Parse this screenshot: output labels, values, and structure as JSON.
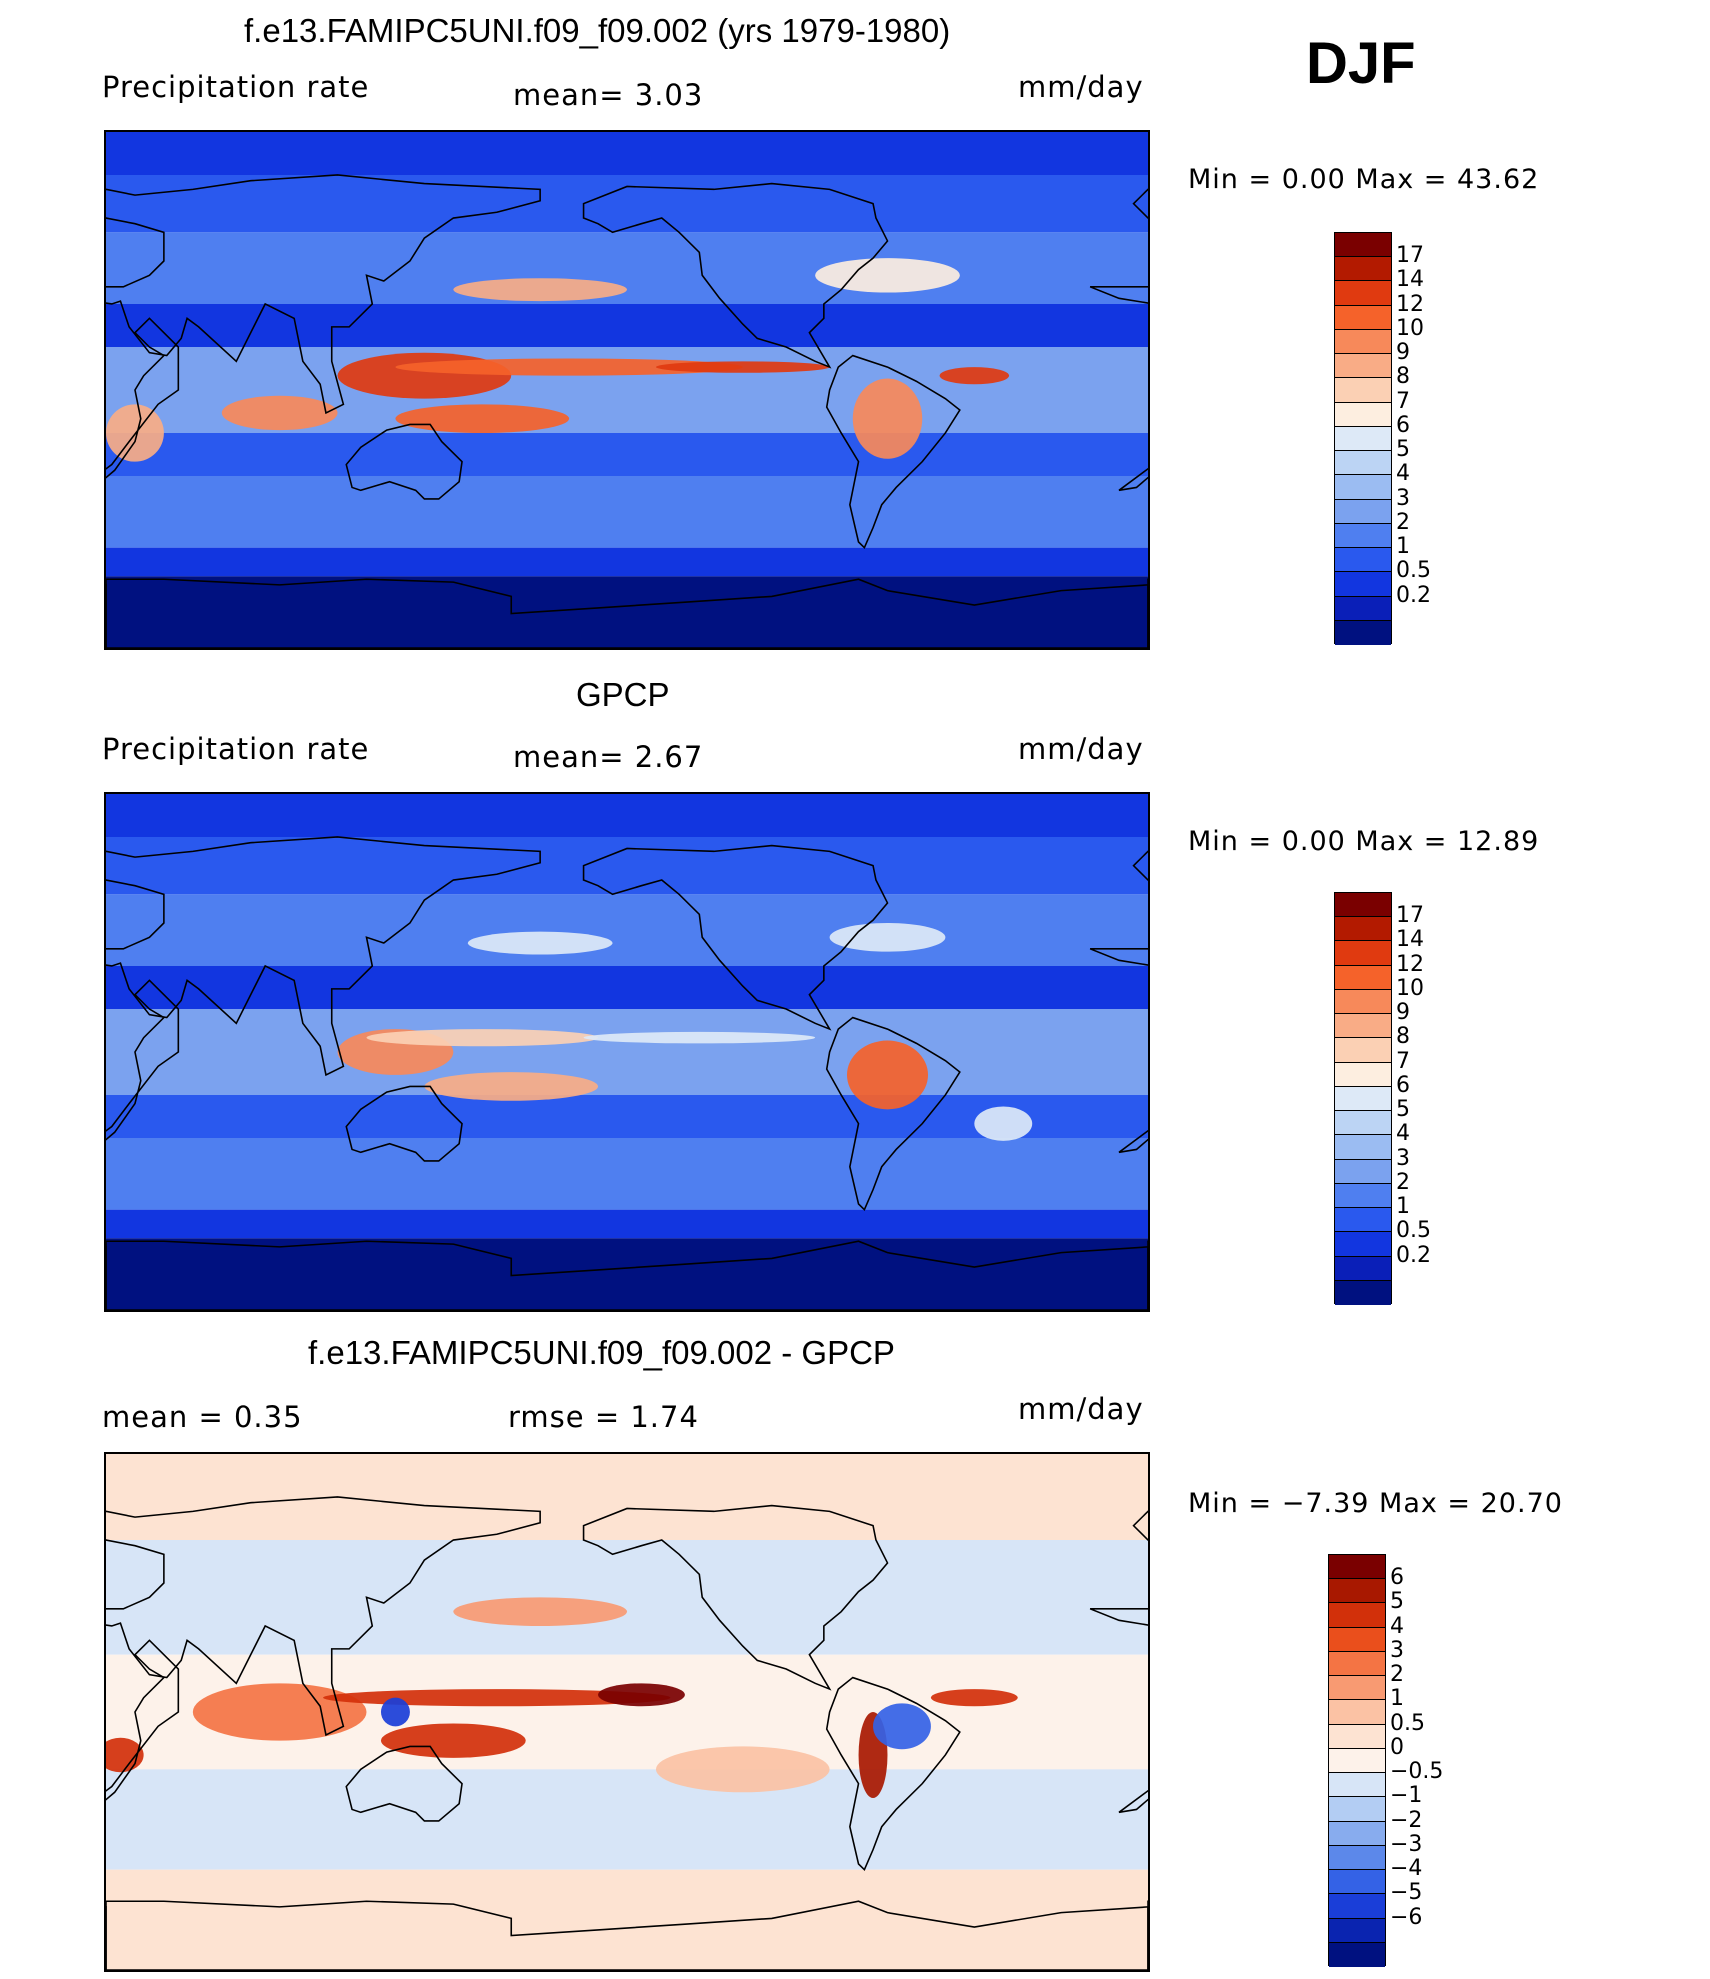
{
  "season": "DJF",
  "panels": [
    {
      "id": "model",
      "title": "f.e13.FAMIPC5UNI.f09_f09.002 (yrs 1979-1980)",
      "left_label": "Precipitation  rate",
      "center_label": "mean=    3.03",
      "right_label": "mm/day",
      "minmax": "Min  =     0.00  Max  =    43.62",
      "field": "precipitation",
      "levels": [
        "17",
        "14",
        "12",
        "10",
        "9",
        "8",
        "7",
        "6",
        "5",
        "4",
        "3",
        "2",
        "1",
        "0.5",
        "0.2"
      ],
      "colors": [
        "#7a0000",
        "#b31a00",
        "#e03a10",
        "#f5622a",
        "#f7895a",
        "#f9ac86",
        "#fbd0b4",
        "#fdeee0",
        "#dde9f7",
        "#bcd4f4",
        "#9bbcf2",
        "#7ba2ef",
        "#4f7ff0",
        "#2a59ee",
        "#1236e0",
        "#0a1fb8",
        "#001180"
      ]
    },
    {
      "id": "obs",
      "title": "GPCP",
      "left_label": "Precipitation  rate",
      "center_label": "mean=    2.67",
      "right_label": "mm/day",
      "minmax": "Min  =     0.00  Max  =    12.89",
      "field": "precipitation",
      "levels": [
        "17",
        "14",
        "12",
        "10",
        "9",
        "8",
        "7",
        "6",
        "5",
        "4",
        "3",
        "2",
        "1",
        "0.5",
        "0.2"
      ],
      "colors": [
        "#7a0000",
        "#b31a00",
        "#e03a10",
        "#f5622a",
        "#f7895a",
        "#f9ac86",
        "#fbd0b4",
        "#fdeee0",
        "#dde9f7",
        "#bcd4f4",
        "#9bbcf2",
        "#7ba2ef",
        "#4f7ff0",
        "#2a59ee",
        "#1236e0",
        "#0a1fb8",
        "#001180"
      ]
    },
    {
      "id": "diff",
      "title": "f.e13.FAMIPC5UNI.f09_f09.002 - GPCP",
      "left_label": "mean  =     0.35",
      "center_label": "rmse  =     1.74",
      "right_label": "mm/day",
      "minmax": "Min  =   −7.39  Max  =    20.70",
      "field": "difference",
      "levels": [
        "6",
        "5",
        "4",
        "3",
        "2",
        "1",
        "0.5",
        "0",
        "−0.5",
        "−1",
        "−2",
        "−3",
        "−4",
        "−5",
        "−6"
      ],
      "colors": [
        "#7a0000",
        "#a81800",
        "#d2300a",
        "#ea4f1c",
        "#f47444",
        "#f89a72",
        "#fbc2a4",
        "#fde3d2",
        "#fdf2ea",
        "#d7e5f7",
        "#b3cdf3",
        "#88acee",
        "#5c88ea",
        "#3462e6",
        "#1a3ed8",
        "#0a24b0",
        "#001180"
      ]
    }
  ]
}
